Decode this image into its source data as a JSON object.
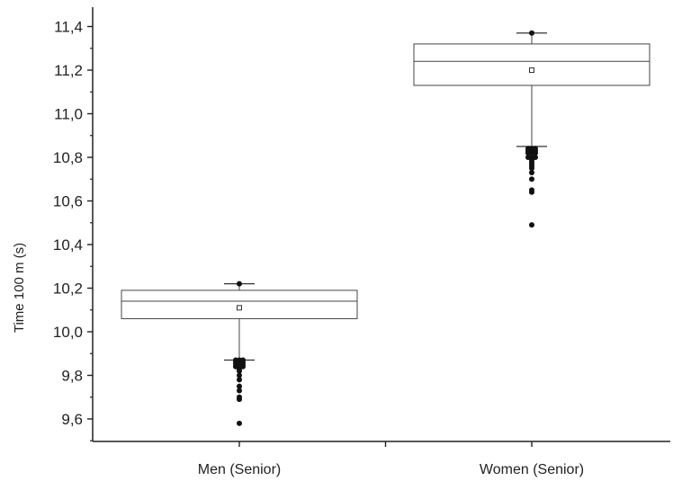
{
  "chart_data": {
    "type": "box",
    "ylabel": "Time 100 m (s)",
    "xlabel": "",
    "ylim": [
      9.5,
      11.5
    ],
    "y_ticks": [
      "9,6",
      "9,8",
      "10,0",
      "10,2",
      "10,4",
      "10,6",
      "10,8",
      "11,0",
      "11,2",
      "11,4"
    ],
    "categories": [
      "Men (Senior)",
      "Women (Senior)"
    ],
    "boxes": [
      {
        "category": "Men (Senior)",
        "q1": 10.06,
        "median": 10.14,
        "q3": 10.19,
        "mean": 10.11,
        "whisker_low": 9.87,
        "whisker_high": 10.22,
        "outliers": [
          9.87,
          9.86,
          9.85,
          9.84,
          9.83,
          9.82,
          9.8,
          9.78,
          9.75,
          9.73,
          9.7,
          9.69,
          9.58
        ]
      },
      {
        "category": "Women (Senior)",
        "q1": 11.13,
        "median": 11.24,
        "q3": 11.32,
        "mean": 11.2,
        "whisker_low": 10.85,
        "whisker_high": 11.37,
        "outliers": [
          10.84,
          10.83,
          10.82,
          10.8,
          10.79,
          10.78,
          10.77,
          10.76,
          10.75,
          10.73,
          10.7,
          10.65,
          10.64,
          10.49
        ]
      }
    ],
    "grid": false,
    "legend": "none"
  }
}
